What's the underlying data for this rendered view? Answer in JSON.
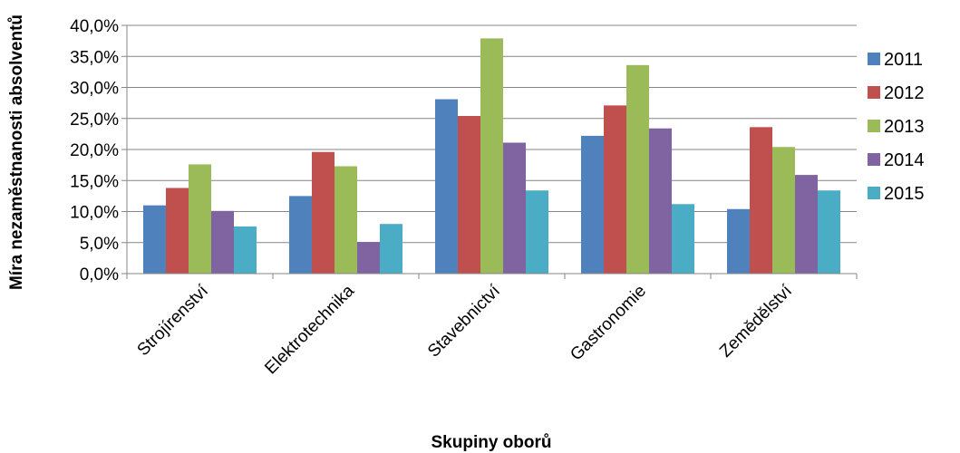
{
  "chart_data": {
    "type": "bar",
    "categories": [
      "Strojírenství",
      "Elektrotechnika",
      "Stavebnictví",
      "Gastronomie",
      "Zemědělství"
    ],
    "series": [
      {
        "name": "2011",
        "color": "#4F81BD",
        "values": [
          11.0,
          12.5,
          28.1,
          22.2,
          10.4
        ]
      },
      {
        "name": "2012",
        "color": "#C0504D",
        "values": [
          13.8,
          19.6,
          25.4,
          27.1,
          23.6
        ]
      },
      {
        "name": "2013",
        "color": "#9BBB59",
        "values": [
          17.6,
          17.3,
          37.9,
          33.6,
          20.4
        ]
      },
      {
        "name": "2014",
        "color": "#8064A2",
        "values": [
          10.1,
          5.1,
          21.1,
          23.4,
          15.9
        ]
      },
      {
        "name": "2015",
        "color": "#4BACC6",
        "values": [
          7.6,
          8.0,
          13.4,
          11.2,
          13.4
        ]
      }
    ],
    "y_ticks": [
      "0,0%",
      "5,0%",
      "10,0%",
      "15,0%",
      "20,0%",
      "25,0%",
      "30,0%",
      "35,0%",
      "40,0%"
    ],
    "ylim": [
      0,
      40
    ],
    "xlabel": "Skupiny oborů",
    "ylabel": "Míra nezaměstnanosti absolventů",
    "grid": true,
    "legend_position": "right",
    "colors": {
      "grid": "#868686",
      "axis": "#868686"
    }
  }
}
